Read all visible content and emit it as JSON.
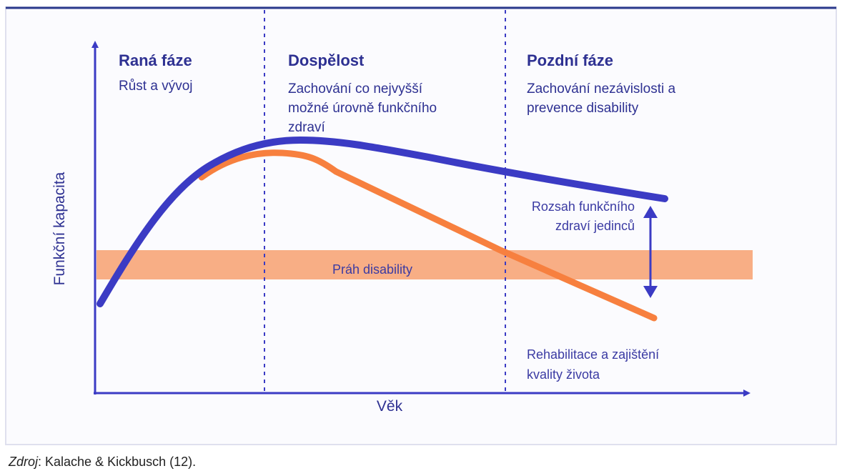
{
  "axes": {
    "y_label": "Funkční kapacita",
    "x_label": "Věk"
  },
  "phases": [
    {
      "title": "Raná fáze",
      "description_lines": [
        "Růst a vývoj"
      ]
    },
    {
      "title": "Dospělost",
      "description_lines": [
        "Zachování co nejvyšší",
        "možné úrovně funkčního",
        "zdraví"
      ]
    },
    {
      "title": "Pozdní fáze",
      "description_lines": [
        "Zachování nezávislosti a",
        "prevence disability"
      ]
    }
  ],
  "annotations": {
    "range_lines": [
      "Rozsah funkčního",
      "zdraví jedinců"
    ],
    "threshold": "Práh disability",
    "rehab_lines": [
      "Rehabilitace a zajištění",
      "kvality života"
    ]
  },
  "source": {
    "label": "Zdroj",
    "text": ": Kalache & Kickbusch (12)."
  }
}
